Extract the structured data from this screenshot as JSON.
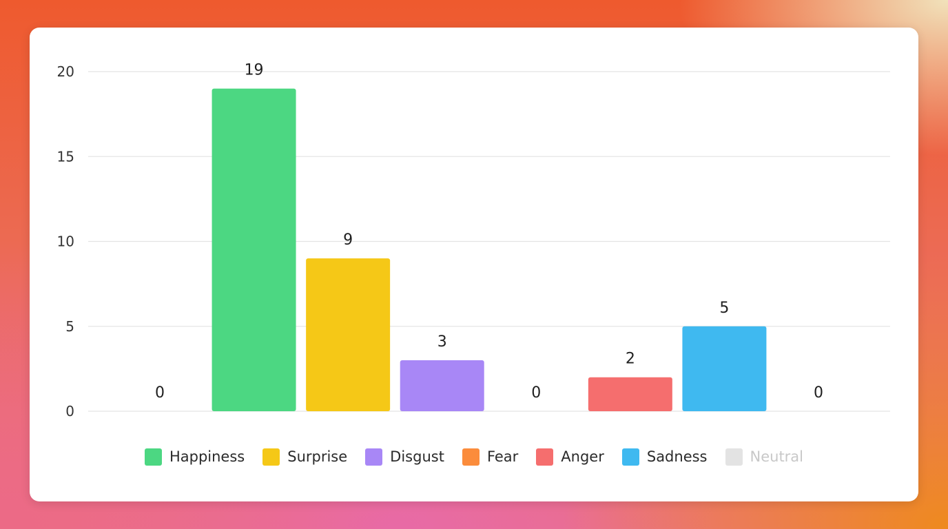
{
  "chart_data": {
    "type": "bar",
    "categories": [
      "Neutral",
      "Happiness",
      "Surprise",
      "Disgust",
      "Fear",
      "Anger",
      "Sadness",
      "Neutral"
    ],
    "values": [
      0,
      19,
      9,
      3,
      0,
      2,
      5,
      0
    ],
    "colors": [
      "#e3e3e3",
      "#4cd782",
      "#f5c817",
      "#a887f6",
      "#fb8c3c",
      "#f56e6e",
      "#3fb9f0",
      "#e3e3e3"
    ],
    "y_ticks": [
      "0",
      "5",
      "10",
      "15",
      "20"
    ],
    "ylim": [
      0,
      20
    ],
    "grid": true,
    "legend_position": "bottom-center",
    "legend": [
      {
        "label": "Happiness",
        "color": "#4cd782",
        "dimmed": false
      },
      {
        "label": "Surprise",
        "color": "#f5c817",
        "dimmed": false
      },
      {
        "label": "Disgust",
        "color": "#a887f6",
        "dimmed": false
      },
      {
        "label": "Fear",
        "color": "#fb8c3c",
        "dimmed": false
      },
      {
        "label": "Anger",
        "color": "#f56e6e",
        "dimmed": false
      },
      {
        "label": "Sadness",
        "color": "#3fb9f0",
        "dimmed": false
      },
      {
        "label": "Neutral",
        "color": "#e3e3e3",
        "dimmed": true
      }
    ]
  }
}
